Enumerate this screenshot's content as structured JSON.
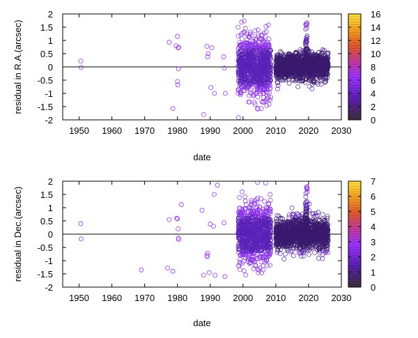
{
  "chart_data": [
    {
      "type": "scatter",
      "ylabel": "residual in R.A.(arcsec)",
      "xlabel": "date",
      "xlim": [
        1945,
        2030
      ],
      "ylim": [
        -2,
        2
      ],
      "x_ticks": [
        "1950",
        "1960",
        "1970",
        "1980",
        "1990",
        "2000",
        "2010",
        "2020",
        "2030"
      ],
      "y_ticks": [
        "-2",
        "-1.5",
        "-1",
        "-0.5",
        "0",
        "0.5",
        "1",
        "1.5",
        "2"
      ],
      "colorbar": {
        "min": 0,
        "max": 16,
        "ticks": [
          "0",
          "2",
          "4",
          "6",
          "8",
          "10",
          "12",
          "14",
          "16"
        ]
      },
      "points": [
        [
          1950.5,
          0.22
        ],
        [
          1950.6,
          -0.02
        ],
        [
          1977.5,
          0.93
        ],
        [
          1979.6,
          0.8
        ],
        [
          1980.0,
          1.15
        ],
        [
          1980.2,
          0.72
        ],
        [
          1980.3,
          -0.07
        ],
        [
          1980.0,
          -0.55
        ],
        [
          1980.1,
          -0.68
        ],
        [
          1978.6,
          -1.57
        ],
        [
          1980.4,
          0.74
        ],
        [
          1988.0,
          -1.8
        ],
        [
          1989.0,
          0.78
        ],
        [
          1989.4,
          0.5
        ],
        [
          1989.2,
          0.38
        ],
        [
          1990.5,
          0.72
        ],
        [
          1990.2,
          -0.78
        ],
        [
          1991.3,
          -1.0
        ],
        [
          1994.1,
          0.38
        ],
        [
          1994.3,
          -0.05
        ],
        [
          1994.6,
          -1.0
        ]
      ],
      "clusters": [
        {
          "x0": 1998.5,
          "x1": 2008.5,
          "ymin": -2,
          "ymax": 2,
          "n": 900,
          "sigma": 0.55,
          "intensity": 1.5
        },
        {
          "x0": 2010.0,
          "x1": 2026.0,
          "ymin": -1.3,
          "ymax": 1.9,
          "n": 1300,
          "sigma": 0.25,
          "intensity": 2.5
        },
        {
          "x0": 2019.0,
          "x1": 2019.6,
          "ymin": 0.2,
          "ymax": 1.7,
          "n": 120,
          "sigma": 0.9,
          "intensity": 3
        }
      ]
    },
    {
      "type": "scatter",
      "ylabel": "residual in Dec.(arcsec)",
      "xlabel": "date",
      "xlim": [
        1945,
        2030
      ],
      "ylim": [
        -2,
        2
      ],
      "x_ticks": [
        "1950",
        "1960",
        "1970",
        "1980",
        "1990",
        "2000",
        "2010",
        "2020",
        "2030"
      ],
      "y_ticks": [
        "-2",
        "-1.5",
        "-1",
        "-0.5",
        "0",
        "0.5",
        "1",
        "1.5",
        "2"
      ],
      "colorbar": {
        "min": 0,
        "max": 7,
        "ticks": [
          "0",
          "1",
          "2",
          "3",
          "4",
          "5",
          "6",
          "7"
        ]
      },
      "points": [
        [
          1950.5,
          0.4
        ],
        [
          1950.6,
          -0.18
        ],
        [
          1969.0,
          -1.35
        ],
        [
          1977.0,
          -1.28
        ],
        [
          1977.5,
          0.55
        ],
        [
          1978.6,
          -1.4
        ],
        [
          1979.8,
          0.6
        ],
        [
          1980.0,
          0.58
        ],
        [
          1980.2,
          0.2
        ],
        [
          1980.3,
          -0.15
        ],
        [
          1980.4,
          -0.2
        ],
        [
          1981.2,
          1.12
        ],
        [
          1987.5,
          0.9
        ],
        [
          1988.0,
          -1.55
        ],
        [
          1989.0,
          -0.8
        ],
        [
          1989.2,
          -0.72
        ],
        [
          1989.1,
          -0.85
        ],
        [
          1989.7,
          -1.45
        ],
        [
          1990.0,
          0.38
        ],
        [
          1991.0,
          0.3
        ],
        [
          1991.2,
          1.5
        ],
        [
          1991.5,
          -1.55
        ],
        [
          1992.2,
          1.85
        ],
        [
          1994.2,
          0.43
        ],
        [
          1994.5,
          -1.6
        ]
      ],
      "clusters": [
        {
          "x0": 1998.5,
          "x1": 2008.5,
          "ymin": -2,
          "ymax": 2,
          "n": 900,
          "sigma": 0.55,
          "intensity": 1.5
        },
        {
          "x0": 2010.0,
          "x1": 2026.0,
          "ymin": -2,
          "ymax": 2,
          "n": 1300,
          "sigma": 0.3,
          "intensity": 2.5
        },
        {
          "x0": 2019.0,
          "x1": 2019.6,
          "ymin": 0.1,
          "ymax": 1.8,
          "n": 120,
          "sigma": 0.9,
          "intensity": 3
        }
      ]
    }
  ]
}
